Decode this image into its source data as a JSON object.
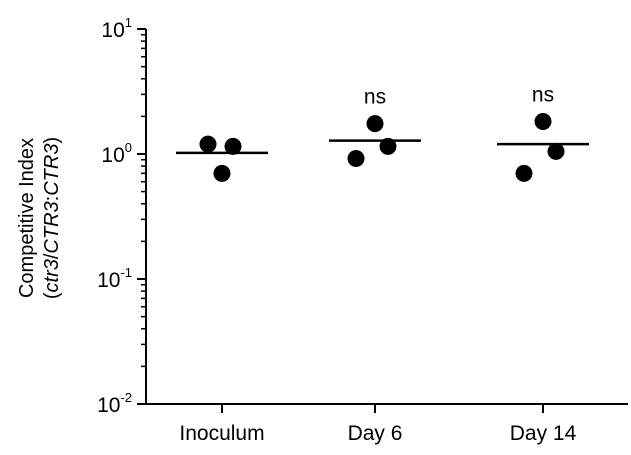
{
  "chart_data": {
    "type": "scatter",
    "scale": "log",
    "ylim": [
      0.01,
      10
    ],
    "grid": false,
    "yticks": [
      {
        "base": "10",
        "exp": "1",
        "value": 10
      },
      {
        "base": "10",
        "exp": "0",
        "value": 1
      },
      {
        "base": "10",
        "exp": "-1",
        "value": 0.1
      },
      {
        "base": "10",
        "exp": "-2",
        "value": 0.01
      }
    ],
    "ylabel_line1": "Competitive  Index",
    "ylabel_line2_parts": [
      "(",
      "ctr3",
      "/",
      "CTR3",
      ":",
      "CTR3",
      ")"
    ],
    "categories": [
      "Inoculum",
      "Day 6",
      "Day 14"
    ],
    "groups": [
      {
        "name": "Inoculum",
        "values": [
          1.2,
          1.15,
          0.7
        ],
        "mean": 1.02,
        "annotation": ""
      },
      {
        "name": "Day 6",
        "values": [
          0.92,
          1.75,
          1.15
        ],
        "mean": 1.28,
        "annotation": "ns"
      },
      {
        "name": "Day 14",
        "values": [
          0.7,
          1.82,
          1.05
        ],
        "mean": 1.2,
        "annotation": "ns"
      }
    ]
  }
}
